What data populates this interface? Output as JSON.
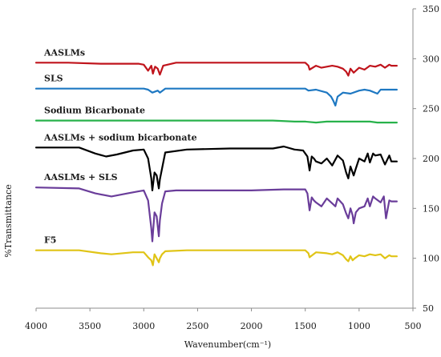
{
  "chart_data": {
    "type": "line",
    "title": "",
    "xlabel": "Wavenumber(cm⁻¹)",
    "ylabel": "%Transmittance",
    "xlim": [
      4000,
      500
    ],
    "ylim": [
      50,
      350
    ],
    "x_reversed": true,
    "y_axis_side": "right",
    "grid": false,
    "x_ticks": [
      4000,
      3500,
      3000,
      2500,
      2000,
      1500,
      1000,
      500
    ],
    "y_ticks": [
      50,
      100,
      150,
      200,
      250,
      300,
      350
    ],
    "series": [
      {
        "name": "AASLMs",
        "color": "#c0141c",
        "x": [
          4000,
          3700,
          3400,
          3200,
          3050,
          3000,
          2960,
          2930,
          2915,
          2895,
          2870,
          2850,
          2820,
          2700,
          2400,
          2000,
          1700,
          1500,
          1470,
          1460,
          1400,
          1350,
          1250,
          1200,
          1150,
          1120,
          1100,
          1080,
          1050,
          1000,
          950,
          900,
          850,
          800,
          760,
          720,
          700,
          650
        ],
        "y": [
          296,
          296,
          295,
          295,
          295,
          294,
          288,
          293,
          285,
          292,
          290,
          284,
          293,
          296,
          296,
          296,
          296,
          296,
          293,
          289,
          293,
          291,
          293,
          292,
          290,
          287,
          283,
          290,
          286,
          291,
          289,
          293,
          292,
          294,
          291,
          294,
          293,
          293
        ]
      },
      {
        "name": "SLS",
        "color": "#1e78c2",
        "x": [
          4000,
          3500,
          3000,
          2960,
          2920,
          2870,
          2850,
          2800,
          2500,
          2000,
          1500,
          1470,
          1400,
          1300,
          1260,
          1240,
          1220,
          1200,
          1150,
          1080,
          1000,
          950,
          900,
          830,
          800,
          720,
          650
        ],
        "y": [
          270,
          270,
          270,
          269,
          266,
          268,
          266,
          270,
          270,
          270,
          270,
          268,
          269,
          266,
          262,
          258,
          253,
          262,
          266,
          265,
          268,
          269,
          268,
          265,
          269,
          269,
          269
        ]
      },
      {
        "name": "Sodium Bicarbonate",
        "color": "#28b24b",
        "x": [
          4000,
          3500,
          3000,
          2500,
          2000,
          1800,
          1600,
          1500,
          1400,
          1300,
          1000,
          900,
          830,
          700,
          650
        ],
        "y": [
          238,
          238,
          238,
          238,
          238,
          238,
          237,
          237,
          236,
          237,
          237,
          237,
          236,
          236,
          236
        ]
      },
      {
        "name": "AASLMs + sodium bicarbonate",
        "color": "#000000",
        "x": [
          4000,
          3600,
          3450,
          3350,
          3250,
          3100,
          3000,
          2960,
          2930,
          2920,
          2900,
          2880,
          2860,
          2850,
          2830,
          2800,
          2600,
          2200,
          1800,
          1700,
          1600,
          1520,
          1480,
          1460,
          1440,
          1420,
          1400,
          1350,
          1300,
          1250,
          1200,
          1150,
          1120,
          1100,
          1080,
          1050,
          1030,
          1000,
          950,
          920,
          900,
          870,
          850,
          800,
          760,
          720,
          700,
          650
        ],
        "y": [
          211,
          211,
          205,
          202,
          204,
          208,
          209,
          200,
          180,
          168,
          186,
          183,
          170,
          179,
          190,
          206,
          209,
          210,
          210,
          212,
          209,
          208,
          202,
          188,
          202,
          200,
          197,
          195,
          200,
          193,
          203,
          198,
          186,
          180,
          192,
          183,
          190,
          200,
          197,
          205,
          196,
          205,
          203,
          204,
          194,
          203,
          197,
          197
        ]
      },
      {
        "name": "AASLMs + SLS",
        "color": "#6a3d9a",
        "x": [
          4000,
          3600,
          3450,
          3300,
          3150,
          3050,
          3000,
          2960,
          2930,
          2920,
          2900,
          2880,
          2860,
          2850,
          2830,
          2800,
          2700,
          2400,
          2000,
          1700,
          1500,
          1480,
          1460,
          1440,
          1420,
          1400,
          1350,
          1300,
          1250,
          1220,
          1200,
          1150,
          1120,
          1100,
          1080,
          1060,
          1050,
          1030,
          1000,
          950,
          920,
          900,
          870,
          850,
          800,
          770,
          750,
          720,
          700,
          650
        ],
        "y": [
          171,
          170,
          165,
          162,
          165,
          167,
          168,
          158,
          130,
          117,
          146,
          142,
          122,
          138,
          155,
          167,
          168,
          168,
          168,
          169,
          169,
          165,
          148,
          161,
          158,
          156,
          152,
          160,
          155,
          152,
          160,
          154,
          145,
          140,
          150,
          143,
          135,
          146,
          150,
          152,
          160,
          152,
          162,
          160,
          156,
          162,
          140,
          158,
          157,
          157
        ]
      },
      {
        "name": "F5",
        "color": "#e0c416",
        "x": [
          4000,
          3600,
          3400,
          3300,
          3100,
          3000,
          2960,
          2930,
          2915,
          2900,
          2880,
          2860,
          2850,
          2830,
          2800,
          2600,
          2200,
          1800,
          1500,
          1470,
          1460,
          1400,
          1300,
          1250,
          1200,
          1150,
          1120,
          1100,
          1080,
          1060,
          1040,
          1000,
          950,
          900,
          850,
          800,
          760,
          720,
          700,
          650
        ],
        "y": [
          108,
          108,
          105,
          104,
          106,
          106,
          101,
          98,
          93,
          104,
          100,
          96,
          100,
          104,
          107,
          108,
          108,
          108,
          108,
          105,
          101,
          106,
          105,
          104,
          106,
          103,
          99,
          97,
          102,
          98,
          100,
          103,
          102,
          104,
          103,
          104,
          100,
          103,
          102,
          102
        ]
      }
    ]
  }
}
